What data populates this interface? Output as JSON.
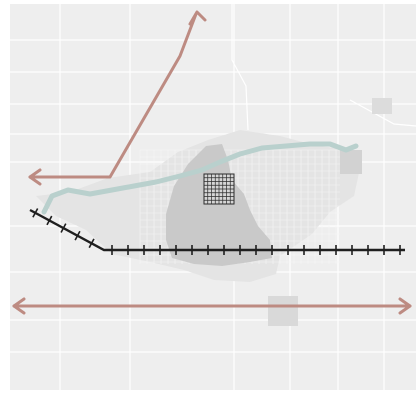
{
  "map": {
    "layers": [
      "street-grid",
      "urban-area",
      "town-center",
      "river",
      "highway",
      "railroad"
    ],
    "colors": {
      "background": "#ffffff",
      "base": "#eeeeee",
      "streets": "#ffffff",
      "urban_light": "#e4e4e4",
      "urban_core": "#c9c9c9",
      "river": "#b9d0cd",
      "highway": "#bd8b82",
      "railroad": "#1f1f1f",
      "town_center_grid": "#2b2b2b"
    },
    "icons": {
      "highway_end": "arrowhead",
      "railroad": "crossties"
    }
  }
}
